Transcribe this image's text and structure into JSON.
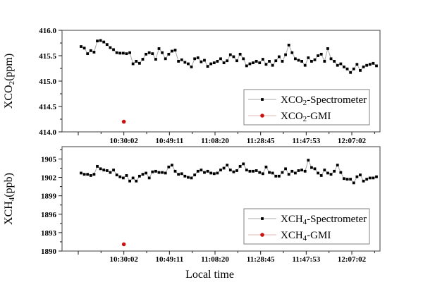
{
  "figure": {
    "xlabel": "Local time",
    "x_tick_labels": [
      "10:30:02",
      "10:49:11",
      "11:08:20",
      "11:28:45",
      "11:47:53",
      "12:07:02"
    ],
    "colors": {
      "spectrometer_marker": "#000000",
      "spectrometer_line": "#a8a8a8",
      "gmi_marker": "#cc1111",
      "gmi_line": "#e3b8b8",
      "frame": "#5f5f5f",
      "tick": "#1a1a1a",
      "legend_border": "#808080",
      "background": "#ffffff"
    }
  },
  "chart_data": [
    {
      "type": "line",
      "title": "",
      "xlabel": "Local time",
      "ylabel": "XCO2(ppm)",
      "ylabel_parts": {
        "pre": "XCO",
        "sub": "2",
        "post": "(ppm)"
      },
      "ylim": [
        414.0,
        416.0
      ],
      "yticks": [
        414.0,
        414.5,
        415.0,
        415.5,
        416.0
      ],
      "ytick_labels": [
        "414.0",
        "414.5",
        "415.0",
        "415.5",
        "416.0"
      ],
      "x_tick_labels": [
        "10:30:02",
        "10:49:11",
        "11:08:20",
        "11:28:45",
        "11:47:53",
        "12:07:02"
      ],
      "grid": false,
      "legend_position": "lower right",
      "series": [
        {
          "name": "XCO2-Spectrometer",
          "label_parts": {
            "pre": "XCO",
            "sub": "2",
            "post": "-Spectrometer"
          },
          "marker": "square",
          "values": [
            415.68,
            415.65,
            415.54,
            415.6,
            415.57,
            415.79,
            415.8,
            415.77,
            415.72,
            415.66,
            415.62,
            415.56,
            415.55,
            415.55,
            415.54,
            415.56,
            415.34,
            415.39,
            415.35,
            415.43,
            415.53,
            415.56,
            415.54,
            415.43,
            415.64,
            415.56,
            415.44,
            415.53,
            415.59,
            415.61,
            415.39,
            415.42,
            415.37,
            415.34,
            415.28,
            415.44,
            415.46,
            415.38,
            415.41,
            415.29,
            415.34,
            415.36,
            415.39,
            415.44,
            415.36,
            415.4,
            415.52,
            415.48,
            415.4,
            415.53,
            415.44,
            415.3,
            415.34,
            415.36,
            415.39,
            415.36,
            415.43,
            415.33,
            415.39,
            415.31,
            415.4,
            415.48,
            415.39,
            415.52,
            415.71,
            415.56,
            415.44,
            415.41,
            415.39,
            415.31,
            415.46,
            415.39,
            415.42,
            415.5,
            415.53,
            415.39,
            415.64,
            415.44,
            415.39,
            415.31,
            415.34,
            415.28,
            415.24,
            415.17,
            415.24,
            415.33,
            415.21,
            415.28,
            415.31,
            415.33,
            415.35,
            415.3
          ]
        },
        {
          "name": "XCO2-GMI",
          "label_parts": {
            "pre": "XCO",
            "sub": "2",
            "post": "-GMI"
          },
          "marker": "circle",
          "points": [
            {
              "time": "10:30:02",
              "value": 414.2
            }
          ]
        }
      ]
    },
    {
      "type": "line",
      "title": "",
      "xlabel": "Local time",
      "ylabel": "XCH4(ppb)",
      "ylabel_parts": {
        "pre": "XCH",
        "sub": "4",
        "post": "(ppb)"
      },
      "ylim": [
        1890,
        1907
      ],
      "yticks": [
        1890,
        1893,
        1896,
        1899,
        1902,
        1905
      ],
      "ytick_labels": [
        "1890",
        "1893",
        "1896",
        "1899",
        "1902",
        "1905"
      ],
      "x_tick_labels": [
        "10:30:02",
        "10:49:11",
        "11:08:20",
        "11:28:45",
        "11:47:53",
        "12:07:02"
      ],
      "grid": false,
      "legend_position": "lower right",
      "series": [
        {
          "name": "XCH4-Spectrometer",
          "label_parts": {
            "pre": "XCH",
            "sub": "4",
            "post": "-Spectrometer"
          },
          "marker": "square",
          "values": [
            1902.7,
            1902.5,
            1902.5,
            1902.3,
            1902.5,
            1903.8,
            1903.4,
            1903.2,
            1903.1,
            1902.8,
            1903.2,
            1902.4,
            1902.1,
            1901.9,
            1902.3,
            1901.4,
            1901.9,
            1901.4,
            1902.2,
            1902.5,
            1902.7,
            1901.9,
            1902.9,
            1903.0,
            1902.8,
            1902.8,
            1902.7,
            1903.7,
            1904.0,
            1903.0,
            1902.5,
            1902.6,
            1902.2,
            1902.0,
            1901.9,
            1902.4,
            1903.0,
            1903.2,
            1902.8,
            1903.0,
            1902.7,
            1902.6,
            1902.7,
            1903.2,
            1903.5,
            1904.0,
            1903.2,
            1902.9,
            1903.1,
            1903.8,
            1904.2,
            1903.2,
            1903.0,
            1903.0,
            1903.1,
            1902.8,
            1902.6,
            1903.7,
            1902.8,
            1902.7,
            1902.2,
            1902.2,
            1902.8,
            1903.4,
            1902.5,
            1903.0,
            1902.7,
            1903.1,
            1903.2,
            1903.0,
            1904.8,
            1903.6,
            1903.4,
            1902.7,
            1902.3,
            1903.2,
            1902.7,
            1902.5,
            1903.0,
            1904.0,
            1902.8,
            1901.8,
            1901.7,
            1901.7,
            1901.1,
            1902.1,
            1902.4,
            1901.4,
            1901.7,
            1901.9,
            1901.9,
            1902.1
          ]
        },
        {
          "name": "XCH4-GMI",
          "label_parts": {
            "pre": "XCH",
            "sub": "4",
            "post": "-GMI"
          },
          "marker": "circle",
          "points": [
            {
              "time": "10:30:02",
              "value": 1891.1
            }
          ]
        }
      ]
    }
  ]
}
